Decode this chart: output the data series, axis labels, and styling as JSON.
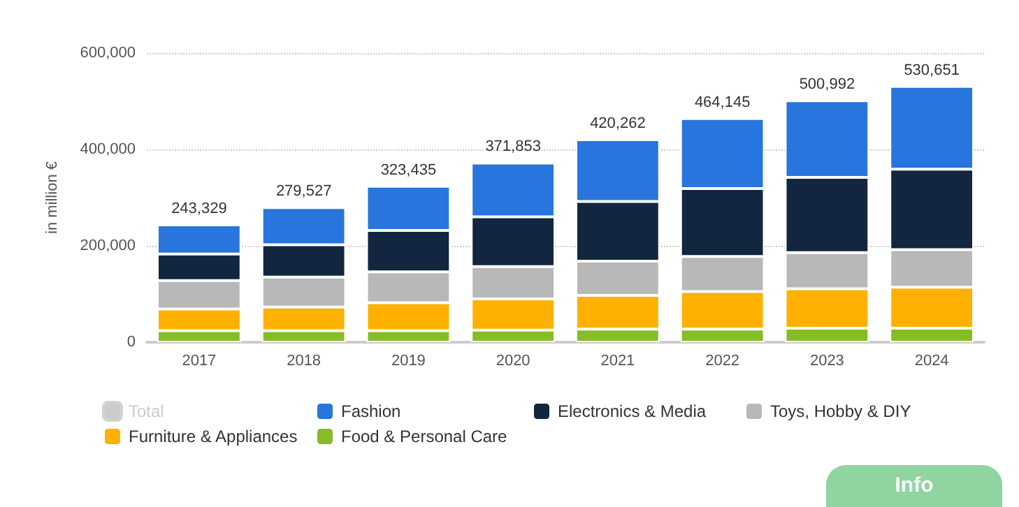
{
  "chart_data": {
    "type": "bar",
    "stacked": true,
    "ylabel": "in million €",
    "categories": [
      "2017",
      "2018",
      "2019",
      "2020",
      "2021",
      "2022",
      "2023",
      "2024"
    ],
    "series": [
      {
        "name": "Food & Personal Care",
        "color": "#86bc25",
        "values": [
          24000,
          24000,
          24000,
          25000,
          27000,
          27000,
          29000,
          29000
        ]
      },
      {
        "name": "Furniture & Appliances",
        "color": "#ffb000",
        "values": [
          45000,
          49000,
          58000,
          65000,
          70000,
          78000,
          82000,
          85000
        ]
      },
      {
        "name": "Toys, Hobby & DIY",
        "color": "#b8b8b8",
        "values": [
          59000,
          62000,
          64000,
          67000,
          71000,
          73000,
          75000,
          78000
        ]
      },
      {
        "name": "Electronics & Media",
        "color": "#12263f",
        "values": [
          55000,
          67000,
          86000,
          103000,
          124000,
          141000,
          156000,
          167000
        ]
      },
      {
        "name": "Fashion",
        "color": "#2876dd",
        "values": [
          60329,
          77527,
          91435,
          111853,
          128262,
          145145,
          158992,
          171651
        ]
      },
      {
        "name": "Total",
        "color": "#cccccc",
        "values": [
          null,
          null,
          null,
          null,
          null,
          null,
          null,
          null
        ]
      }
    ],
    "totals": [
      "243,329",
      "279,527",
      "323,435",
      "371,853",
      "420,262",
      "464,145",
      "500,992",
      "530,651"
    ],
    "ylim": [
      0,
      600000
    ],
    "yticks": [
      {
        "value": 0,
        "label": "0"
      },
      {
        "value": 200000,
        "label": "200,000"
      },
      {
        "value": 400000,
        "label": "400,000"
      },
      {
        "value": 600000,
        "label": "600,000"
      }
    ],
    "grid": "y",
    "legend": "bottom",
    "annotations": [
      "Info"
    ]
  }
}
